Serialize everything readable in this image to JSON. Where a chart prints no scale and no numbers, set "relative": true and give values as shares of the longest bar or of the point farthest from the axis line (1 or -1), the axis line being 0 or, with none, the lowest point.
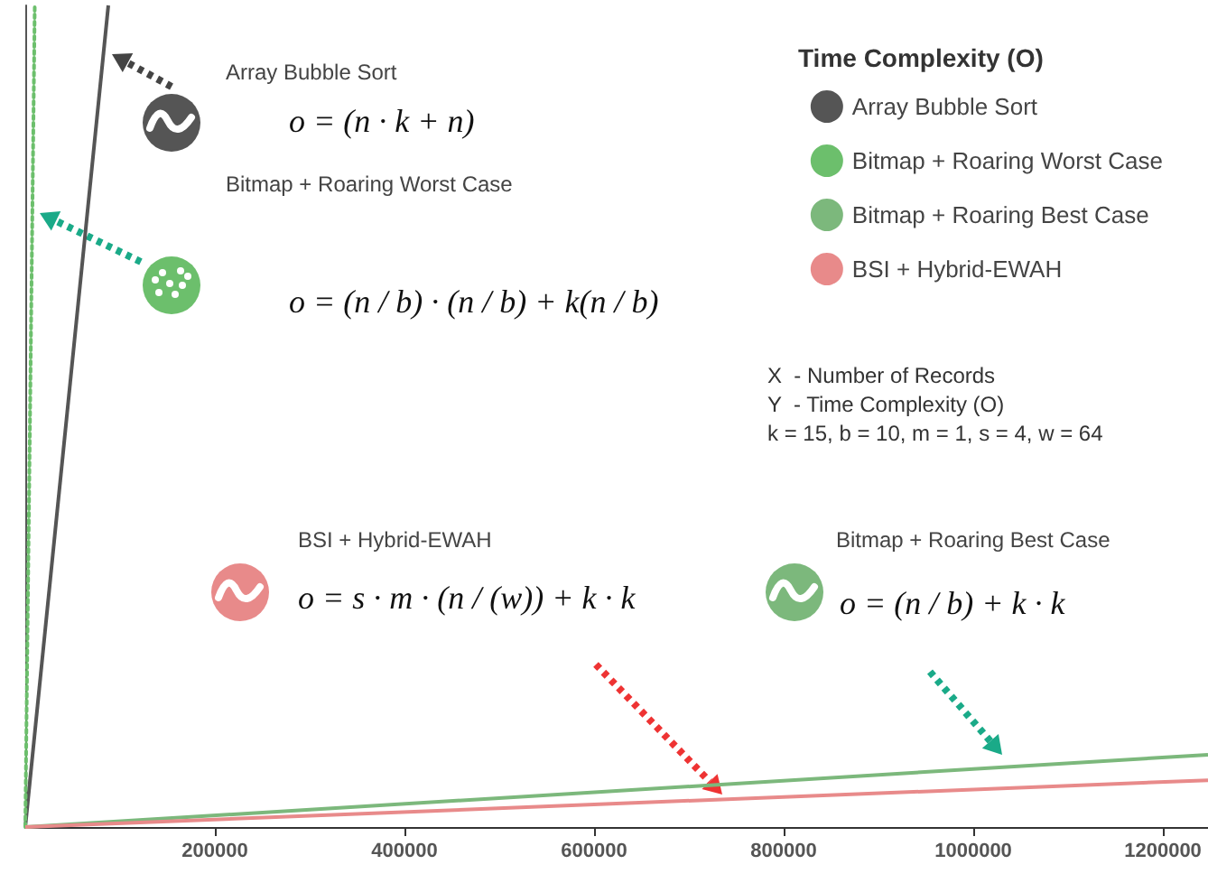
{
  "chart_data": {
    "type": "line",
    "relative": true,
    "legend_title": "Time Complexity (O)",
    "legend": "top right",
    "marker": "none",
    "grid": false,
    "xlim": [
      0,
      1247600
    ],
    "xticks": [
      200000,
      400000,
      600000,
      800000,
      1000000,
      1200000
    ],
    "series": [
      {
        "name": "Array Bubble Sort",
        "color": "#555555",
        "x": [
          0,
          87600
        ],
        "values": [
          0,
          1
        ]
      },
      {
        "name": "Bitmap + Roaring Worst Case",
        "color": "#6cbf6c",
        "x": [
          0,
          10000
        ],
        "values": [
          0,
          1
        ],
        "line_style": "dotted"
      },
      {
        "name": "Bitmap + Roaring Best Case",
        "color": "#7cb87c",
        "x": [
          0,
          1247600
        ],
        "values": [
          0,
          0.088
        ]
      },
      {
        "name": "BSI + Hybrid-EWAH",
        "color": "#e88a8a",
        "x": [
          0,
          1247600
        ],
        "values": [
          0,
          0.057
        ]
      }
    ],
    "annotations": [
      "Array Bubble Sort",
      "o = (n · k + n)",
      "Bitmap + Roaring Worst Case",
      "o = (n / b) · (n / b) + k(n / b)",
      "BSI + Hybrid-EWAH",
      "o = s · m · (n / (w)) + k · k",
      "Bitmap + Roaring Best Case",
      "o = (n / b) + k · k",
      "X  - Number of Records",
      "Y  - Time Complexity (O)",
      "k = 15, b = 10, m = 1, s = 4, w = 64"
    ]
  }
}
